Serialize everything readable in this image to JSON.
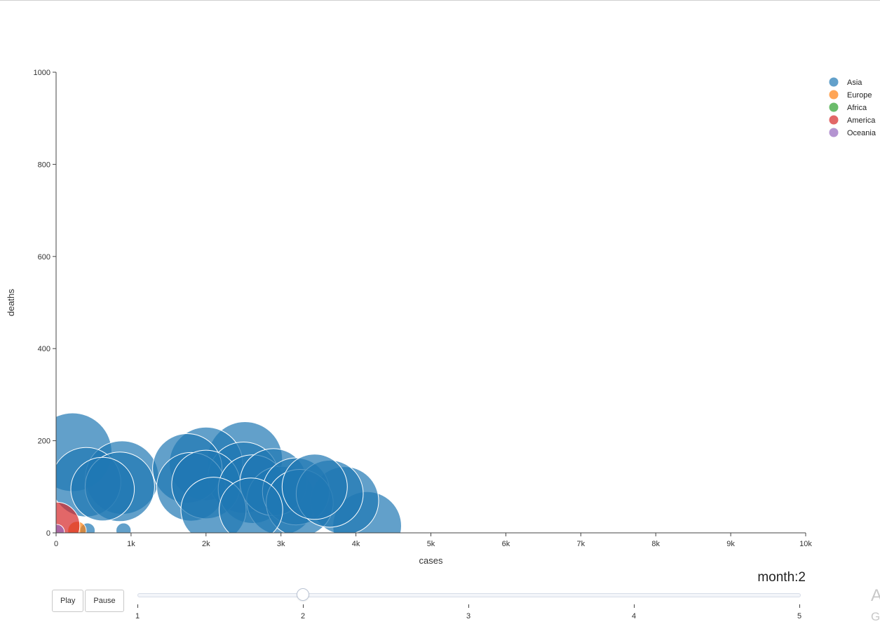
{
  "chart_data": {
    "type": "scatter",
    "title": "",
    "xlabel": "cases",
    "ylabel": "deaths",
    "xlim": [
      0,
      10000
    ],
    "ylim": [
      0,
      1000
    ],
    "x_ticks": [
      0,
      1000,
      2000,
      3000,
      4000,
      5000,
      6000,
      7000,
      8000,
      9000,
      10000
    ],
    "x_tick_labels": [
      "0",
      "1k",
      "2k",
      "3k",
      "4k",
      "5k",
      "6k",
      "7k",
      "8k",
      "9k",
      "10k"
    ],
    "y_ticks": [
      0,
      200,
      400,
      600,
      800,
      1000
    ],
    "y_tick_labels": [
      "0",
      "200",
      "400",
      "600",
      "800",
      "1000"
    ],
    "grid": false,
    "legend_position": "top-right",
    "bubble_size_encoding": true,
    "series": [
      {
        "name": "Asia",
        "color": "#1f77b4",
        "points": [
          {
            "x": 220,
            "y": 175,
            "size": 550
          },
          {
            "x": 400,
            "y": 110,
            "size": 430
          },
          {
            "x": 620,
            "y": 95,
            "size": 360
          },
          {
            "x": 880,
            "y": 120,
            "size": 480
          },
          {
            "x": 850,
            "y": 100,
            "size": 430
          },
          {
            "x": 900,
            "y": 5,
            "size": 20
          },
          {
            "x": 420,
            "y": 5,
            "size": 20
          },
          {
            "x": 1750,
            "y": 140,
            "size": 430
          },
          {
            "x": 1800,
            "y": 100,
            "size": 420
          },
          {
            "x": 2000,
            "y": 150,
            "size": 480
          },
          {
            "x": 2000,
            "y": 105,
            "size": 420
          },
          {
            "x": 2100,
            "y": 50,
            "size": 380
          },
          {
            "x": 2520,
            "y": 160,
            "size": 500
          },
          {
            "x": 2500,
            "y": 120,
            "size": 450
          },
          {
            "x": 2620,
            "y": 95,
            "size": 420
          },
          {
            "x": 2600,
            "y": 50,
            "size": 360
          },
          {
            "x": 2900,
            "y": 110,
            "size": 400
          },
          {
            "x": 3000,
            "y": 70,
            "size": 420
          },
          {
            "x": 3200,
            "y": 90,
            "size": 400
          },
          {
            "x": 3250,
            "y": 65,
            "size": 400
          },
          {
            "x": 3450,
            "y": 100,
            "size": 380
          },
          {
            "x": 3650,
            "y": 85,
            "size": 400
          },
          {
            "x": 3850,
            "y": 70,
            "size": 410
          },
          {
            "x": 4150,
            "y": 15,
            "size": 420
          }
        ]
      },
      {
        "name": "Europe",
        "color": "#ff7f0e",
        "points": [
          {
            "x": 280,
            "y": 5,
            "size": 30
          }
        ]
      },
      {
        "name": "Africa",
        "color": "#2ca02c",
        "points": []
      },
      {
        "name": "America",
        "color": "#d62728",
        "points": [
          {
            "x": 0,
            "y": 15,
            "size": 200
          }
        ]
      },
      {
        "name": "Oceania",
        "color": "#9467bd",
        "points": [
          {
            "x": 10,
            "y": 2,
            "size": 20
          }
        ]
      }
    ],
    "legend_colors": [
      "#1f77b4",
      "#ff7f0e",
      "#2ca02c",
      "#d62728",
      "#9467bd"
    ]
  },
  "controls": {
    "play_label": "Play",
    "pause_label": "Pause"
  },
  "slider": {
    "prefix": "month:",
    "current": 2,
    "min": 1,
    "max": 5,
    "steps": [
      "1",
      "2",
      "3",
      "4",
      "5"
    ]
  },
  "cutoff_text": {
    "first": "A",
    "second": "G"
  }
}
